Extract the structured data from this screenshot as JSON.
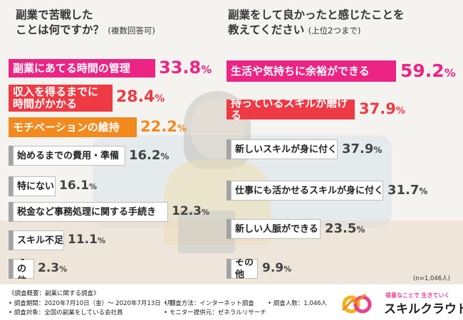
{
  "left_title": "副業で苦戦した\nことは何ですか？",
  "left_title_sub": "(複数回答可)",
  "right_title": "副業をして良かったと感じたことを\n教えてください",
  "right_title_sub": "(上位2つまで)",
  "sample_note": "(n=1,046人)",
  "colors": {
    "magenta": "#ec2484",
    "red": "#ee3a44",
    "orange": "#f28a1e",
    "gray": "#a3a3a3"
  },
  "chart_data": [
    {
      "type": "bar",
      "title": "副業で苦戦したことは何ですか？(複数回答可)",
      "unit": "%",
      "categories": [
        "副業にあてる時間の管理",
        "収入を得るまでに時間がかかる",
        "モチベーションの維持",
        "始めるまでの費用・準備",
        "特にない",
        "税金など事務処理に関する手続き",
        "スキル不足",
        "その他"
      ],
      "values": [
        33.8,
        28.4,
        22.2,
        16.2,
        16.1,
        12.3,
        11.1,
        2.3
      ],
      "bar_colors": [
        "magenta",
        "red",
        "orange",
        "gray",
        "gray",
        "gray",
        "gray",
        "gray"
      ]
    },
    {
      "type": "bar",
      "title": "副業をして良かったと感じたことを教えてください(上位2つまで)",
      "unit": "%",
      "categories": [
        "生活や気持ちに余裕ができる",
        "持っているスキルが磨ける",
        "新しいスキルが身に付く",
        "仕事にも活かせるスキルが身に付く",
        "新しい人脈ができる",
        "その他"
      ],
      "values": [
        59.2,
        37.9,
        37.9,
        31.7,
        23.5,
        9.9
      ],
      "bar_colors": [
        "magenta",
        "red",
        "gray",
        "gray",
        "gray",
        "gray"
      ]
    }
  ],
  "bar_labels_left": [
    "副業にあてる時間の管理",
    "収入を得るまでに\n時間がかかる",
    "モチベーションの維持",
    "始めるまでの費用・準備",
    "特にない",
    "税金など事務処理に関する手続き",
    "スキル不足",
    "その他"
  ],
  "bar_labels_right": [
    "生活や気持ちに余裕ができる",
    "持っているスキルが磨ける",
    "新しいスキルが身に付く",
    "仕事にも活かせるスキルが身に付く",
    "新しい人脈ができる",
    "その他"
  ],
  "footer": {
    "overview": "《調査概要：副業に関する調査》",
    "period": "• 調査期間：2020年7月10日（金）〜 2020年7月13日（月）",
    "target": "• 調査対象：全国の副業をしている会社員",
    "method": "• 調査方法：インターネット調査",
    "provider": "• モニター提供元：ゼネラルリサーチ",
    "respondents": "• 調査人数：1,046人"
  },
  "logo": {
    "tagline": "得意なことで 生きていく",
    "name": "スキルクラウド"
  }
}
